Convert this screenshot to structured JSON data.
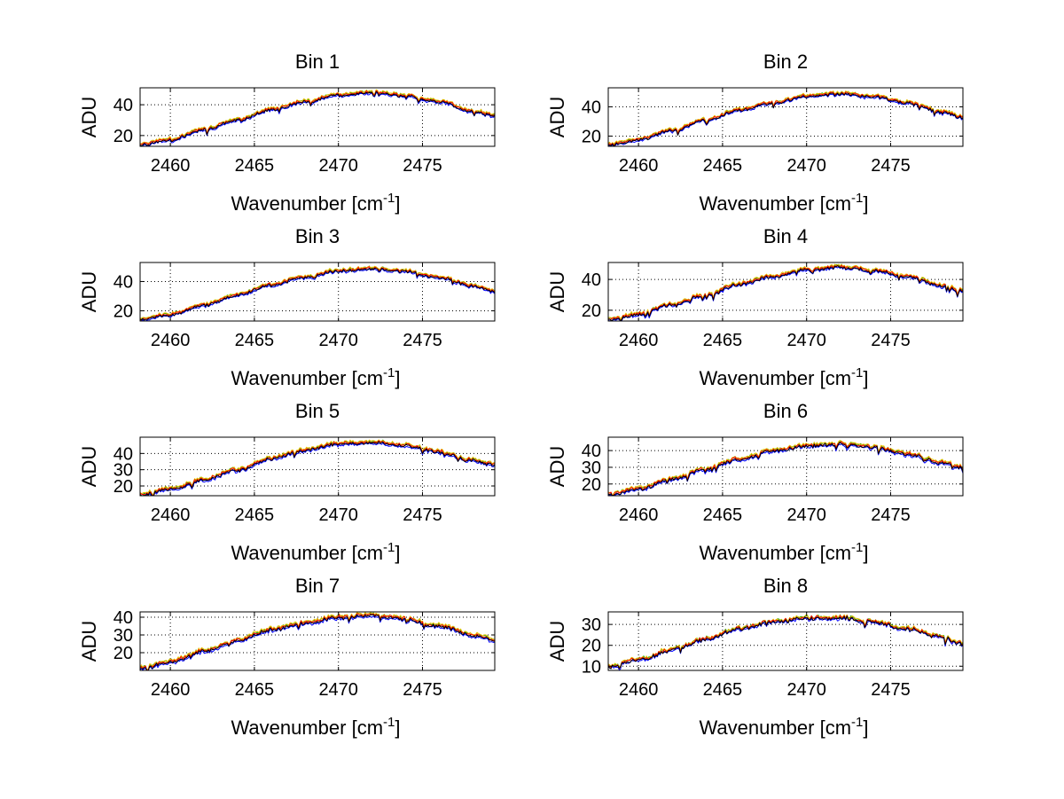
{
  "chart_data": [
    {
      "type": "line",
      "title": "Bin 1",
      "xlabel": "Wavenumber [cm",
      "xlabel_sup": "-1",
      "xlabel_end": "]",
      "ylabel": "ADU",
      "xlim": [
        2458.2,
        2479.3
      ],
      "ylim": [
        13,
        51
      ],
      "xticks": [
        2460,
        2465,
        2470,
        2475
      ],
      "yticks": [
        20,
        40
      ],
      "grid": true,
      "anchors": [
        [
          2458.2,
          14
        ],
        [
          2460,
          17.5
        ],
        [
          2462,
          24
        ],
        [
          2464,
          30
        ],
        [
          2466,
          37
        ],
        [
          2468,
          42
        ],
        [
          2470,
          46.5
        ],
        [
          2472,
          48
        ],
        [
          2474,
          46
        ],
        [
          2476,
          42
        ],
        [
          2478,
          36
        ],
        [
          2479.3,
          33
        ]
      ],
      "series": [
        {
          "color": "#0000ff",
          "offset": -0.9
        },
        {
          "color": "#00a000",
          "offset": 0.7
        },
        {
          "color": "#e8c000",
          "offset": 1.0
        },
        {
          "color": "#ff0000",
          "offset": 0.3
        },
        {
          "color": "#000000",
          "offset": -0.3
        }
      ]
    },
    {
      "type": "line",
      "title": "Bin 2",
      "xlabel": "Wavenumber [cm",
      "xlabel_sup": "-1",
      "xlabel_end": "]",
      "ylabel": "ADU",
      "xlim": [
        2458.2,
        2479.3
      ],
      "ylim": [
        13,
        53
      ],
      "xticks": [
        2460,
        2465,
        2470,
        2475
      ],
      "yticks": [
        20,
        40
      ],
      "grid": true,
      "anchors": [
        [
          2458.2,
          14
        ],
        [
          2460,
          17.5
        ],
        [
          2462,
          24
        ],
        [
          2464,
          31
        ],
        [
          2466,
          38
        ],
        [
          2468,
          43
        ],
        [
          2470,
          47.5
        ],
        [
          2472,
          49
        ],
        [
          2474,
          47
        ],
        [
          2476,
          43
        ],
        [
          2478,
          37
        ],
        [
          2479.3,
          33
        ]
      ],
      "series": [
        {
          "color": "#0000ff",
          "offset": -0.9
        },
        {
          "color": "#00a000",
          "offset": 0.7
        },
        {
          "color": "#e8c000",
          "offset": 1.0
        },
        {
          "color": "#ff0000",
          "offset": 0.3
        },
        {
          "color": "#000000",
          "offset": -0.3
        }
      ]
    },
    {
      "type": "line",
      "title": "Bin 3",
      "xlabel": "Wavenumber [cm",
      "xlabel_sup": "-1",
      "xlabel_end": "]",
      "ylabel": "ADU",
      "xlim": [
        2458.2,
        2479.3
      ],
      "ylim": [
        13,
        53
      ],
      "xticks": [
        2460,
        2465,
        2470,
        2475
      ],
      "yticks": [
        20,
        40
      ],
      "grid": true,
      "anchors": [
        [
          2458.2,
          14
        ],
        [
          2460,
          17.5
        ],
        [
          2462,
          24
        ],
        [
          2464,
          31
        ],
        [
          2466,
          38
        ],
        [
          2468,
          43
        ],
        [
          2470,
          47.5
        ],
        [
          2472,
          49
        ],
        [
          2474,
          47
        ],
        [
          2476,
          43
        ],
        [
          2478,
          37
        ],
        [
          2479.3,
          33
        ]
      ],
      "series": [
        {
          "color": "#0000ff",
          "offset": -0.9
        },
        {
          "color": "#00a000",
          "offset": 0.7
        },
        {
          "color": "#e8c000",
          "offset": 1.0
        },
        {
          "color": "#ff0000",
          "offset": 0.3
        },
        {
          "color": "#000000",
          "offset": -0.3
        }
      ]
    },
    {
      "type": "line",
      "title": "Bin 4",
      "xlabel": "Wavenumber [cm",
      "xlabel_sup": "-1",
      "xlabel_end": "]",
      "ylabel": "ADU",
      "xlim": [
        2458.2,
        2479.3
      ],
      "ylim": [
        13,
        51
      ],
      "xticks": [
        2460,
        2465,
        2470,
        2475
      ],
      "yticks": [
        20,
        40
      ],
      "grid": true,
      "anchors": [
        [
          2458.2,
          14
        ],
        [
          2460,
          17.5
        ],
        [
          2462,
          24
        ],
        [
          2464,
          30
        ],
        [
          2466,
          37
        ],
        [
          2468,
          42
        ],
        [
          2470,
          46.5
        ],
        [
          2472,
          48
        ],
        [
          2474,
          46
        ],
        [
          2476,
          42
        ],
        [
          2478,
          36
        ],
        [
          2479.3,
          33
        ]
      ],
      "series": [
        {
          "color": "#0000ff",
          "offset": -0.9
        },
        {
          "color": "#00a000",
          "offset": 0.7
        },
        {
          "color": "#e8c000",
          "offset": 1.0
        },
        {
          "color": "#ff0000",
          "offset": 0.3
        },
        {
          "color": "#000000",
          "offset": -0.3
        }
      ]
    },
    {
      "type": "line",
      "title": "Bin 5",
      "xlabel": "Wavenumber [cm",
      "xlabel_sup": "-1",
      "xlabel_end": "]",
      "ylabel": "ADU",
      "xlim": [
        2458.2,
        2479.3
      ],
      "ylim": [
        14,
        50
      ],
      "xticks": [
        2460,
        2465,
        2470,
        2475
      ],
      "yticks": [
        20,
        30,
        40
      ],
      "grid": true,
      "anchors": [
        [
          2458.2,
          15
        ],
        [
          2460,
          18
        ],
        [
          2462,
          24
        ],
        [
          2464,
          30
        ],
        [
          2466,
          37
        ],
        [
          2468,
          42
        ],
        [
          2470,
          46
        ],
        [
          2472,
          47
        ],
        [
          2474,
          45
        ],
        [
          2476,
          41
        ],
        [
          2478,
          36
        ],
        [
          2479.3,
          33
        ]
      ],
      "series": [
        {
          "color": "#0000ff",
          "offset": -0.9
        },
        {
          "color": "#00a000",
          "offset": 0.7
        },
        {
          "color": "#e8c000",
          "offset": 1.0
        },
        {
          "color": "#ff0000",
          "offset": 0.3
        },
        {
          "color": "#000000",
          "offset": -0.3
        }
      ]
    },
    {
      "type": "line",
      "title": "Bin 6",
      "xlabel": "Wavenumber [cm",
      "xlabel_sup": "-1",
      "xlabel_end": "]",
      "ylabel": "ADU",
      "xlim": [
        2458.2,
        2479.3
      ],
      "ylim": [
        13,
        48
      ],
      "xticks": [
        2460,
        2465,
        2470,
        2475
      ],
      "yticks": [
        20,
        30,
        40
      ],
      "grid": true,
      "anchors": [
        [
          2458.2,
          14
        ],
        [
          2460,
          17
        ],
        [
          2462,
          23
        ],
        [
          2464,
          29
        ],
        [
          2466,
          35
        ],
        [
          2468,
          40
        ],
        [
          2470,
          43
        ],
        [
          2472,
          44
        ],
        [
          2474,
          42
        ],
        [
          2476,
          38
        ],
        [
          2478,
          33
        ],
        [
          2479.3,
          30
        ]
      ],
      "series": [
        {
          "color": "#0000ff",
          "offset": -0.9
        },
        {
          "color": "#00a000",
          "offset": 0.7
        },
        {
          "color": "#e8c000",
          "offset": 1.0
        },
        {
          "color": "#ff0000",
          "offset": 0.3
        },
        {
          "color": "#000000",
          "offset": -0.3
        }
      ]
    },
    {
      "type": "line",
      "title": "Bin 7",
      "xlabel": "Wavenumber [cm",
      "xlabel_sup": "-1",
      "xlabel_end": "]",
      "ylabel": "ADU",
      "xlim": [
        2458.2,
        2479.3
      ],
      "ylim": [
        10,
        43
      ],
      "xticks": [
        2460,
        2465,
        2470,
        2475
      ],
      "yticks": [
        20,
        30,
        40
      ],
      "grid": true,
      "anchors": [
        [
          2458.2,
          11
        ],
        [
          2460,
          15
        ],
        [
          2462,
          21
        ],
        [
          2464,
          27
        ],
        [
          2466,
          33
        ],
        [
          2468,
          37
        ],
        [
          2470,
          40
        ],
        [
          2472,
          41
        ],
        [
          2474,
          39
        ],
        [
          2476,
          35
        ],
        [
          2478,
          30
        ],
        [
          2479.3,
          27
        ]
      ],
      "series": [
        {
          "color": "#0000ff",
          "offset": -0.9
        },
        {
          "color": "#00a000",
          "offset": 0.7
        },
        {
          "color": "#e8c000",
          "offset": 1.0
        },
        {
          "color": "#ff0000",
          "offset": 0.3
        },
        {
          "color": "#000000",
          "offset": -0.3
        }
      ]
    },
    {
      "type": "line",
      "title": "Bin 8",
      "xlabel": "Wavenumber [cm",
      "xlabel_sup": "-1",
      "xlabel_end": "]",
      "ylabel": "ADU",
      "xlim": [
        2458.2,
        2479.3
      ],
      "ylim": [
        8,
        36
      ],
      "xticks": [
        2460,
        2465,
        2470,
        2475
      ],
      "yticks": [
        10,
        20,
        30
      ],
      "grid": true,
      "anchors": [
        [
          2458.2,
          10
        ],
        [
          2460,
          13
        ],
        [
          2462,
          18
        ],
        [
          2464,
          23
        ],
        [
          2466,
          28
        ],
        [
          2468,
          31
        ],
        [
          2470,
          33
        ],
        [
          2472,
          33.5
        ],
        [
          2474,
          31
        ],
        [
          2476,
          28
        ],
        [
          2478,
          24
        ],
        [
          2479.3,
          21
        ]
      ],
      "series": [
        {
          "color": "#0000ff",
          "offset": -0.6
        },
        {
          "color": "#00a000",
          "offset": 0.5
        },
        {
          "color": "#e8c000",
          "offset": 0.7
        },
        {
          "color": "#ff0000",
          "offset": 0.2
        },
        {
          "color": "#000000",
          "offset": -0.2
        }
      ]
    }
  ]
}
